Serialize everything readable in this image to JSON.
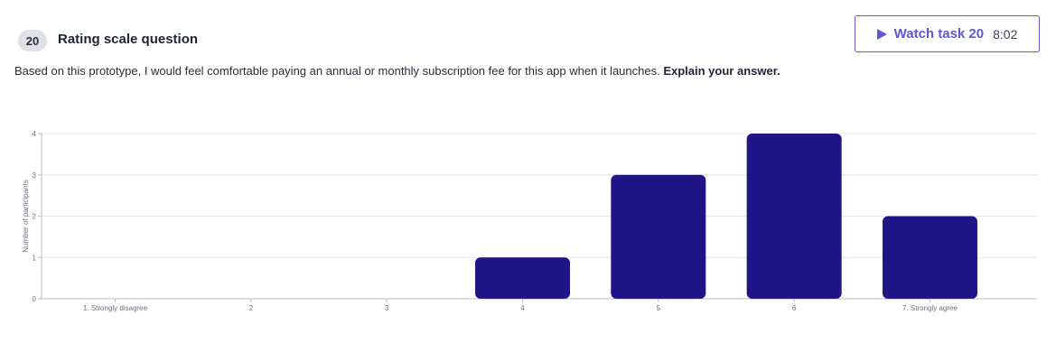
{
  "question": {
    "number": "20",
    "type_label": "Rating scale question",
    "text": "Based on this prototype, I would feel comfortable paying an annual or monthly subscription fee for this app when it launches.",
    "emphasis": "Explain your answer."
  },
  "watch_button": {
    "label": "Watch task 20",
    "duration": "8:02"
  },
  "colors": {
    "bar": "#1f1587",
    "accent": "#5f58d6",
    "grid": "#e4e6eb",
    "axis": "#b8bcc6"
  },
  "chart_data": {
    "type": "bar",
    "categories": [
      "1. Strongly disagree",
      "2",
      "3",
      "4",
      "5",
      "6",
      "7. Strongly agree"
    ],
    "values": [
      0,
      0,
      0,
      1,
      3,
      4,
      2
    ],
    "ylabel": "Number of participants",
    "ylim": [
      0,
      4
    ],
    "yticks": [
      0,
      1,
      2,
      3,
      4
    ],
    "grid": true
  }
}
